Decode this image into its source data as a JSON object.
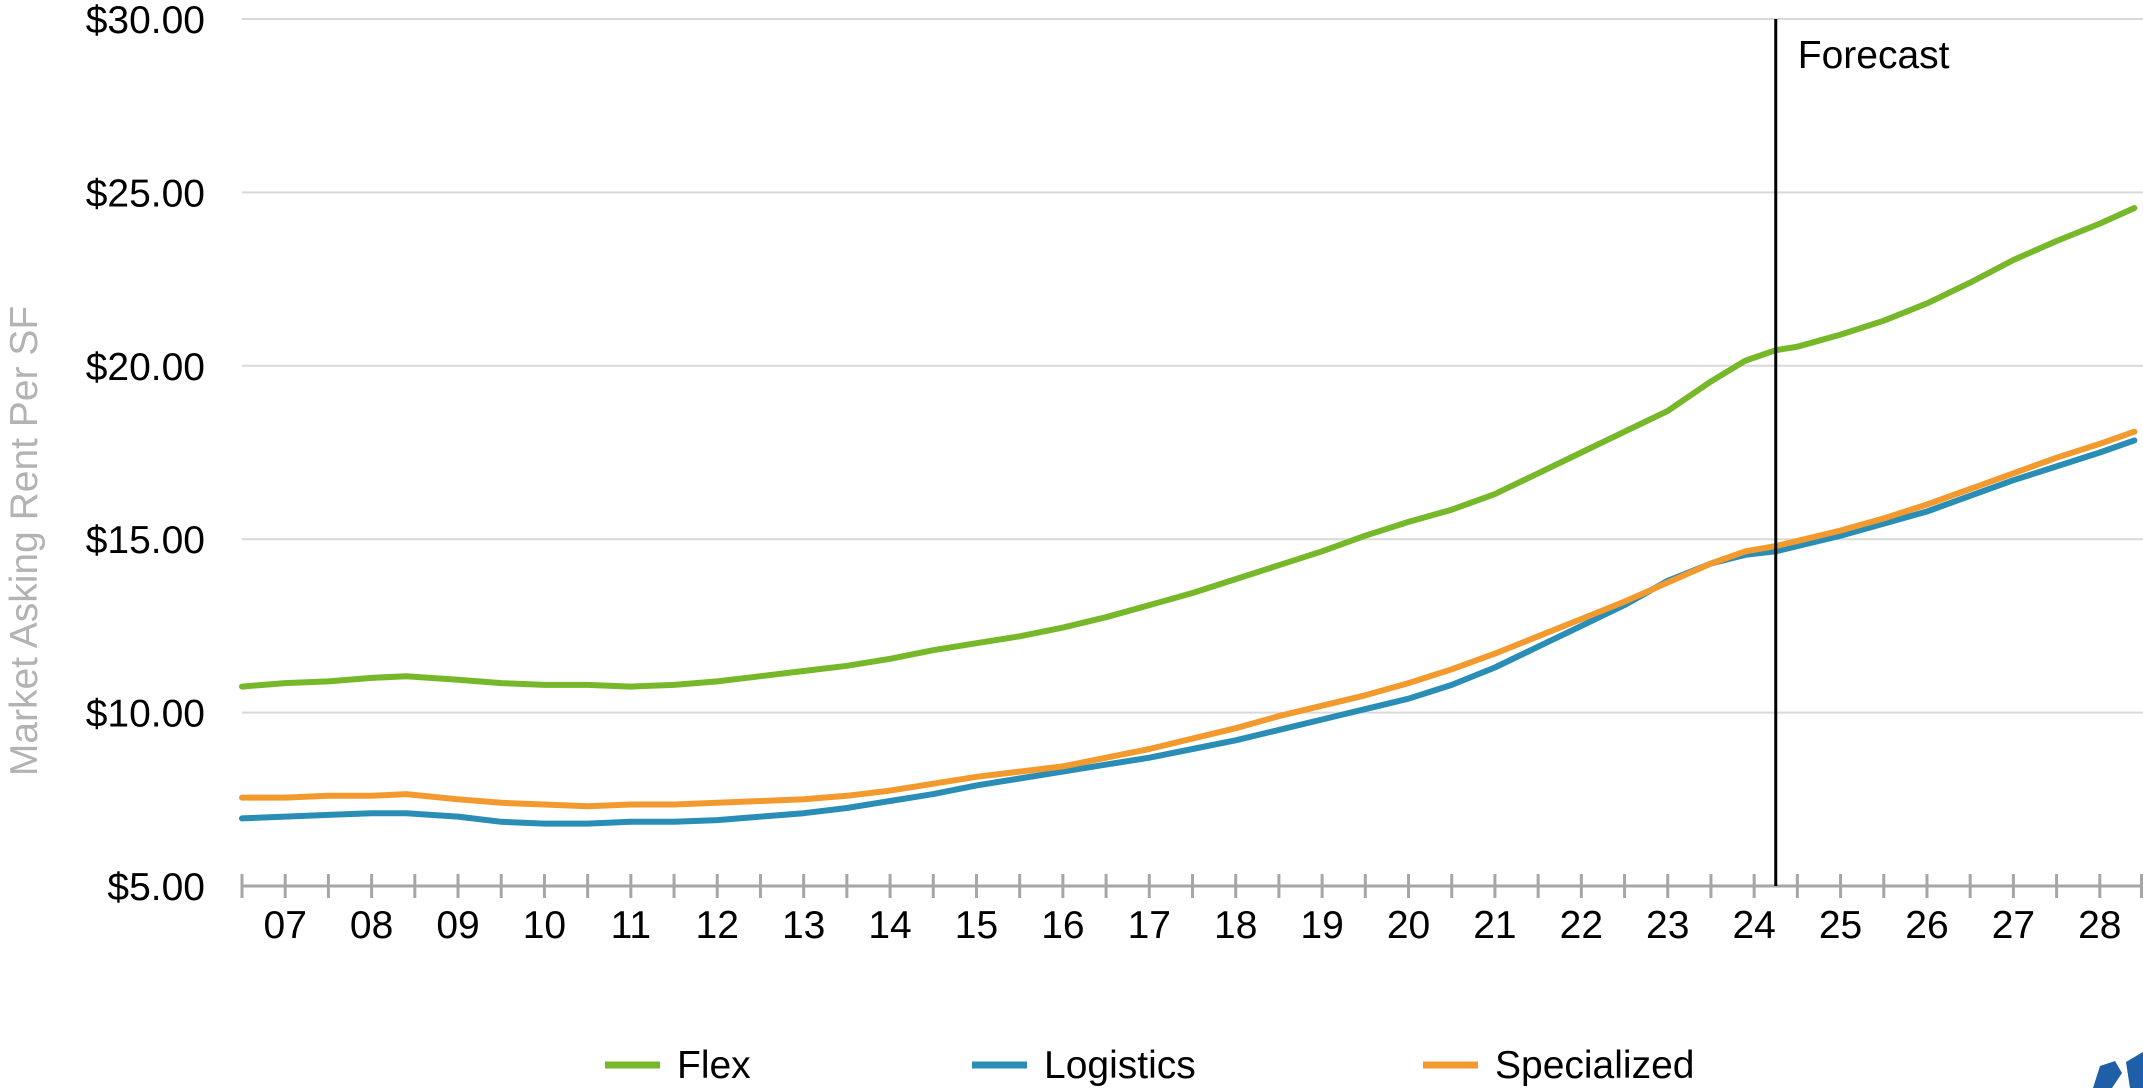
{
  "chart_data": {
    "type": "line",
    "ylabel": "Market Asking Rent Per SF",
    "ylim": [
      5,
      30
    ],
    "y_ticks": [
      "$5.00",
      "$10.00",
      "$15.00",
      "$20.00",
      "$25.00",
      "$30.00"
    ],
    "y_tick_values": [
      5,
      10,
      15,
      20,
      25,
      30
    ],
    "x_ticks": [
      "07",
      "08",
      "09",
      "10",
      "11",
      "12",
      "13",
      "14",
      "15",
      "16",
      "17",
      "18",
      "19",
      "20",
      "21",
      "22",
      "23",
      "24",
      "25",
      "26",
      "27",
      "28"
    ],
    "x_range": [
      2007,
      2029
    ],
    "grid": true,
    "legend_position": "bottom",
    "annotation": {
      "text": "Forecast",
      "x": 2024.75
    },
    "series": [
      {
        "name": "Flex",
        "color": "#76b82a",
        "x": [
          2007,
          2007.5,
          2008,
          2008.5,
          2008.9,
          2009.5,
          2010,
          2010.5,
          2011,
          2011.5,
          2012,
          2012.5,
          2013,
          2013.5,
          2014,
          2014.5,
          2015,
          2015.5,
          2016,
          2016.5,
          2017,
          2017.5,
          2018,
          2018.5,
          2019,
          2019.5,
          2020,
          2020.5,
          2021,
          2021.5,
          2022,
          2022.5,
          2023,
          2023.5,
          2024,
          2024.4,
          2024.75,
          2025,
          2025.5,
          2026,
          2026.5,
          2027,
          2027.5,
          2028,
          2028.5,
          2028.9
        ],
        "y": [
          10.75,
          10.85,
          10.9,
          11.0,
          11.05,
          10.95,
          10.85,
          10.8,
          10.8,
          10.75,
          10.8,
          10.9,
          11.05,
          11.2,
          11.35,
          11.55,
          11.8,
          12.0,
          12.2,
          12.45,
          12.75,
          13.1,
          13.45,
          13.85,
          14.25,
          14.65,
          15.1,
          15.5,
          15.85,
          16.3,
          16.9,
          17.5,
          18.1,
          18.7,
          19.55,
          20.15,
          20.45,
          20.55,
          20.9,
          21.3,
          21.8,
          22.4,
          23.05,
          23.6,
          24.1,
          24.55
        ]
      },
      {
        "name": "Logistics",
        "color": "#2a8db5",
        "x": [
          2007,
          2007.5,
          2008,
          2008.5,
          2008.9,
          2009.5,
          2010,
          2010.5,
          2011,
          2011.5,
          2012,
          2012.5,
          2013,
          2013.5,
          2014,
          2014.5,
          2015,
          2015.5,
          2016,
          2016.5,
          2017,
          2017.5,
          2018,
          2018.5,
          2019,
          2019.5,
          2020,
          2020.5,
          2021,
          2021.5,
          2022,
          2022.5,
          2023,
          2023.5,
          2024,
          2024.4,
          2024.75,
          2025,
          2025.5,
          2026,
          2026.5,
          2027,
          2027.5,
          2028,
          2028.5,
          2028.9
        ],
        "y": [
          6.95,
          7.0,
          7.05,
          7.1,
          7.1,
          7.0,
          6.85,
          6.8,
          6.8,
          6.85,
          6.85,
          6.9,
          7.0,
          7.1,
          7.25,
          7.45,
          7.65,
          7.9,
          8.1,
          8.3,
          8.5,
          8.7,
          8.95,
          9.2,
          9.5,
          9.8,
          10.1,
          10.4,
          10.8,
          11.3,
          11.9,
          12.5,
          13.1,
          13.8,
          14.3,
          14.55,
          14.65,
          14.8,
          15.1,
          15.45,
          15.8,
          16.25,
          16.7,
          17.1,
          17.5,
          17.85
        ]
      },
      {
        "name": "Specialized",
        "color": "#f39a2e",
        "x": [
          2007,
          2007.5,
          2008,
          2008.5,
          2008.9,
          2009.5,
          2010,
          2010.5,
          2011,
          2011.5,
          2012,
          2012.5,
          2013,
          2013.5,
          2014,
          2014.5,
          2015,
          2015.5,
          2016,
          2016.5,
          2017,
          2017.5,
          2018,
          2018.5,
          2019,
          2019.5,
          2020,
          2020.5,
          2021,
          2021.5,
          2022,
          2022.5,
          2023,
          2023.5,
          2024,
          2024.4,
          2024.75,
          2025,
          2025.5,
          2026,
          2026.5,
          2027,
          2027.5,
          2028,
          2028.5,
          2028.9
        ],
        "y": [
          7.55,
          7.55,
          7.6,
          7.6,
          7.65,
          7.5,
          7.4,
          7.35,
          7.3,
          7.35,
          7.35,
          7.4,
          7.45,
          7.5,
          7.6,
          7.75,
          7.95,
          8.15,
          8.3,
          8.45,
          8.7,
          8.95,
          9.25,
          9.55,
          9.9,
          10.2,
          10.5,
          10.85,
          11.25,
          11.7,
          12.2,
          12.7,
          13.2,
          13.75,
          14.3,
          14.65,
          14.8,
          14.95,
          15.25,
          15.6,
          16.0,
          16.45,
          16.9,
          17.35,
          17.75,
          18.1
        ]
      }
    ]
  }
}
